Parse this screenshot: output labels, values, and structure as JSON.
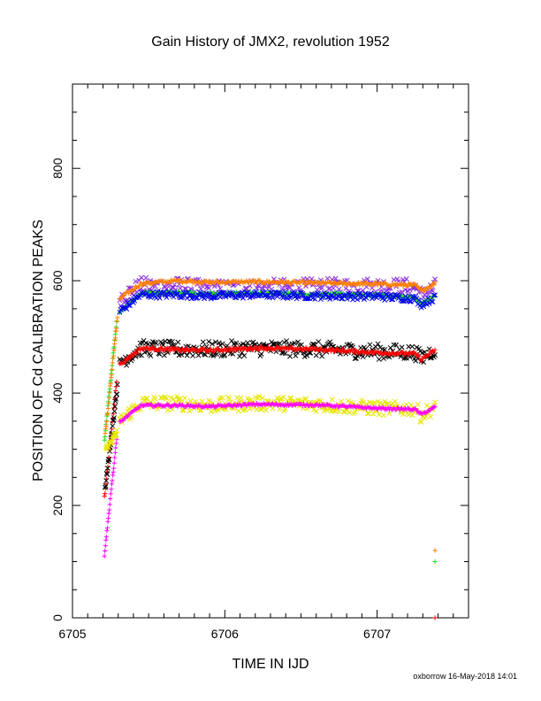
{
  "chart_data": {
    "type": "scatter",
    "title": "Gain History of JMX2, revolution 1952",
    "xlabel": "TIME IN IJD",
    "ylabel": "POSITION OF Cd CALIBRATION PEAKS",
    "xlim": [
      6705.0,
      6707.6
    ],
    "ylim": [
      0,
      950
    ],
    "x_ticks": [
      6705,
      6706,
      6707
    ],
    "y_ticks": [
      0,
      200,
      400,
      600,
      800
    ],
    "grid": false,
    "legend": "none",
    "footer": "oxborrow 16-May-2018 14:01",
    "series": [
      {
        "color": "#8a2be2",
        "marker": "x",
        "scatter": 16,
        "x": [
          6705.31,
          6705.45,
          6705.7,
          6705.9,
          6706.2,
          6706.6,
          6707.0,
          6707.25,
          6707.29,
          6707.38
        ],
        "y": [
          570,
          590,
          590,
          585,
          587,
          588,
          590,
          588,
          572,
          588
        ]
      },
      {
        "color": "#ff7f00",
        "marker": "+",
        "scatter": 3,
        "x": [
          6705.31,
          6705.45,
          6705.7,
          6705.9,
          6706.2,
          6706.6,
          6707.0,
          6707.25,
          6707.29,
          6707.38
        ],
        "y": [
          568,
          595,
          600,
          597,
          598,
          596,
          594,
          592,
          582,
          595
        ]
      },
      {
        "color": "#22dd22",
        "marker": "+",
        "scatter": 3,
        "x": [
          6705.31,
          6705.45,
          6705.7,
          6705.9,
          6706.2,
          6706.6,
          6707.0,
          6707.25,
          6707.29,
          6707.38
        ],
        "y": [
          545,
          578,
          579,
          577,
          578,
          576,
          574,
          570,
          558,
          573
        ]
      },
      {
        "color": "#0000ee",
        "marker": "x",
        "scatter": 6,
        "x": [
          6705.31,
          6705.45,
          6705.7,
          6705.9,
          6706.2,
          6706.6,
          6707.0,
          6707.25,
          6707.29,
          6707.38
        ],
        "y": [
          545,
          575,
          575,
          573,
          575,
          573,
          572,
          568,
          558,
          570
        ]
      },
      {
        "color": "#000000",
        "marker": "x",
        "scatter": 14,
        "x": [
          6705.31,
          6705.45,
          6705.7,
          6705.9,
          6706.2,
          6706.6,
          6707.0,
          6707.25,
          6707.29,
          6707.38
        ],
        "y": [
          455,
          480,
          478,
          478,
          480,
          478,
          474,
          472,
          462,
          478
        ]
      },
      {
        "color": "#ff0000",
        "marker": "+",
        "scatter": 3,
        "x": [
          6705.31,
          6705.45,
          6705.7,
          6705.9,
          6706.2,
          6706.6,
          6707.0,
          6707.25,
          6707.29,
          6707.38
        ],
        "y": [
          450,
          480,
          477,
          476,
          480,
          478,
          472,
          470,
          460,
          476
        ]
      },
      {
        "color": "#e6e600",
        "marker": "x",
        "scatter": 13,
        "x": [
          6705.31,
          6705.45,
          6705.7,
          6705.9,
          6706.2,
          6706.6,
          6707.0,
          6707.25,
          6707.29,
          6707.38
        ],
        "y": [
          350,
          382,
          382,
          378,
          382,
          380,
          373,
          372,
          360,
          376
        ]
      },
      {
        "color": "#ff00ff",
        "marker": "+",
        "scatter": 2,
        "x": [
          6705.31,
          6705.45,
          6705.7,
          6705.9,
          6706.2,
          6706.6,
          6707.0,
          6707.25,
          6707.29,
          6707.38
        ],
        "y": [
          348,
          378,
          378,
          376,
          380,
          379,
          373,
          371,
          362,
          375
        ]
      }
    ],
    "rise": [
      {
        "color": "#22dd22",
        "marker": "+",
        "x0": 6705.21,
        "y0": 315,
        "x1": 6705.29,
        "y1": 528,
        "spread": 8
      },
      {
        "color": "#ff7f00",
        "marker": "+",
        "x0": 6705.215,
        "y0": 325,
        "x1": 6705.295,
        "y1": 535,
        "spread": 8
      },
      {
        "color": "#ff0000",
        "marker": "+",
        "x0": 6705.21,
        "y0": 215,
        "x1": 6705.29,
        "y1": 420,
        "spread": 8
      },
      {
        "color": "#000000",
        "marker": "x",
        "x0": 6705.215,
        "y0": 230,
        "x1": 6705.295,
        "y1": 410,
        "spread": 12
      },
      {
        "color": "#ff00ff",
        "marker": "+",
        "x0": 6705.21,
        "y0": 112,
        "x1": 6705.29,
        "y1": 318,
        "spread": 5
      },
      {
        "color": "#e6e600",
        "marker": "x",
        "x0": 6705.22,
        "y0": 300,
        "x1": 6705.29,
        "y1": 330,
        "spread": 10
      }
    ],
    "outliers": [
      {
        "color": "#ff7f00",
        "marker": "+",
        "x": 6707.38,
        "y": 120
      },
      {
        "color": "#22dd22",
        "marker": "+",
        "x": 6707.38,
        "y": 100
      },
      {
        "color": "#ff0000",
        "marker": "+",
        "x": 6707.38,
        "y": 0
      }
    ]
  }
}
